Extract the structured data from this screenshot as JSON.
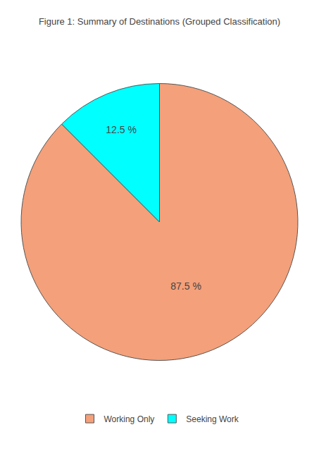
{
  "chart_data": {
    "type": "pie",
    "title": "Figure 1: Summary of Destinations (Grouped Classification)",
    "categories": [
      "Working Only",
      "Seeking Work"
    ],
    "values": [
      87.5,
      12.5
    ],
    "value_labels": [
      "87.5 %",
      "12.5 %"
    ],
    "colors": [
      "#F4A07A",
      "#00FFFF"
    ],
    "data_labels": true,
    "legend": "bottom"
  }
}
